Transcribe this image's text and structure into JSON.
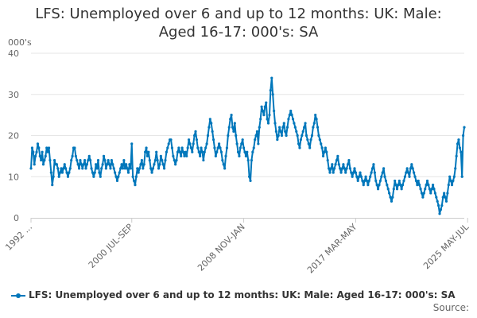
{
  "page": {
    "title_line1": "LFS: Unemployed over 6 and up to 12 months: UK: Male:",
    "title_line2": "Aged 16-17: 000's: SA",
    "source_label": "Source:"
  },
  "chart_data": {
    "type": "line",
    "title": "LFS: Unemployed over 6 and up to 12 months: UK: Male: Aged 16-17: 000's: SA",
    "ylabel": "000's",
    "xlabel": "",
    "ylim": [
      0,
      40
    ],
    "yticks": [
      0,
      10,
      20,
      30,
      40
    ],
    "grid": true,
    "legend_position": "bottom",
    "series_color": "#0077bb",
    "xtick_labels": [
      {
        "label": "1992 ...",
        "index": 0
      },
      {
        "label": "2000 JUL-SEP",
        "index": 90
      },
      {
        "label": "2008 NOV-JAN",
        "index": 190
      },
      {
        "label": "2017 MAR-MAY",
        "index": 290
      },
      {
        "label": "2025 MAY-JUL",
        "index": 390
      }
    ],
    "series": [
      {
        "name": "LFS: Unemployed over 6 and up to 12 months: UK: Male: Aged 16-17: 000's: SA",
        "values": [
          12,
          17,
          16,
          13,
          15,
          16,
          18,
          17,
          15,
          14,
          16,
          13,
          14,
          15,
          17,
          16,
          17,
          14,
          11,
          8,
          10,
          14,
          13,
          13,
          12,
          10,
          11,
          12,
          11,
          12,
          13,
          12,
          11,
          10,
          11,
          12,
          14,
          15,
          17,
          17,
          15,
          14,
          13,
          12,
          14,
          13,
          12,
          13,
          14,
          12,
          13,
          14,
          15,
          14,
          12,
          11,
          10,
          11,
          13,
          12,
          14,
          11,
          10,
          12,
          13,
          15,
          14,
          12,
          13,
          14,
          13,
          12,
          14,
          13,
          12,
          11,
          10,
          9,
          10,
          11,
          12,
          13,
          12,
          14,
          12,
          13,
          12,
          11,
          13,
          12,
          18,
          10,
          9,
          8,
          10,
          12,
          11,
          12,
          13,
          14,
          12,
          13,
          16,
          17,
          15,
          16,
          14,
          12,
          11,
          12,
          13,
          14,
          16,
          14,
          12,
          13,
          15,
          14,
          13,
          12,
          14,
          16,
          17,
          18,
          19,
          19,
          17,
          15,
          14,
          13,
          14,
          16,
          17,
          16,
          15,
          17,
          16,
          15,
          16,
          15,
          17,
          19,
          18,
          17,
          16,
          18,
          20,
          21,
          19,
          17,
          16,
          15,
          17,
          16,
          14,
          16,
          17,
          18,
          20,
          22,
          24,
          23,
          21,
          19,
          17,
          15,
          16,
          17,
          18,
          17,
          16,
          14,
          13,
          12,
          15,
          17,
          20,
          22,
          24,
          25,
          22,
          21,
          23,
          20,
          18,
          16,
          15,
          17,
          18,
          19,
          17,
          16,
          15,
          16,
          14,
          10,
          9,
          14,
          16,
          17,
          19,
          20,
          21,
          18,
          22,
          24,
          27,
          26,
          25,
          27,
          28,
          24,
          23,
          25,
          31,
          34,
          30,
          26,
          23,
          21,
          19,
          20,
          22,
          21,
          20,
          22,
          23,
          21,
          20,
          22,
          24,
          25,
          26,
          25,
          24,
          23,
          22,
          21,
          20,
          18,
          17,
          19,
          20,
          21,
          22,
          23,
          20,
          19,
          18,
          17,
          19,
          20,
          22,
          23,
          25,
          24,
          22,
          20,
          19,
          18,
          17,
          15,
          16,
          17,
          16,
          14,
          12,
          11,
          12,
          13,
          11,
          12,
          13,
          14,
          15,
          13,
          12,
          11,
          12,
          13,
          12,
          11,
          12,
          13,
          14,
          12,
          11,
          10,
          11,
          12,
          11,
          10,
          9,
          10,
          11,
          10,
          9,
          8,
          9,
          10,
          9,
          8,
          9,
          10,
          11,
          12,
          13,
          11,
          9,
          8,
          7,
          8,
          9,
          10,
          11,
          12,
          10,
          9,
          8,
          7,
          6,
          5,
          4,
          5,
          7,
          9,
          8,
          7,
          8,
          9,
          8,
          7,
          8,
          9,
          10,
          11,
          12,
          11,
          10,
          12,
          13,
          12,
          11,
          10,
          9,
          8,
          9,
          8,
          7,
          6,
          5,
          6,
          7,
          8,
          9,
          8,
          7,
          6,
          7,
          8,
          7,
          6,
          5,
          4,
          3,
          1,
          2,
          3,
          5,
          6,
          5,
          4,
          6,
          8,
          10,
          9,
          8,
          9,
          10,
          12,
          15,
          18,
          19,
          17,
          16,
          10,
          20,
          22
        ]
      }
    ]
  }
}
